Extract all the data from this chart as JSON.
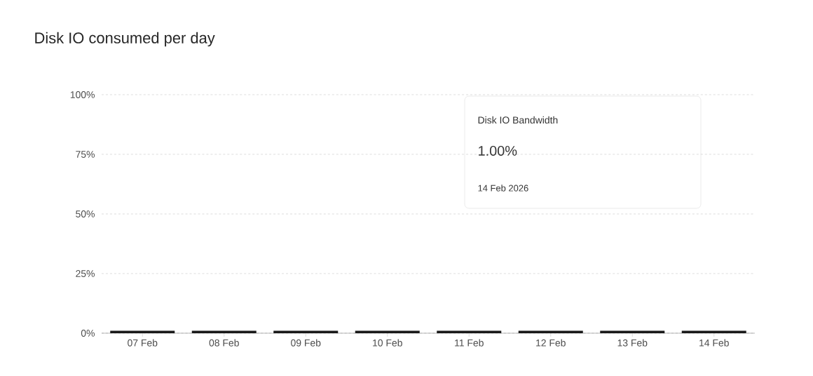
{
  "chart_data": {
    "type": "bar",
    "title": "Disk IO consumed per day",
    "categories": [
      "07 Feb",
      "08 Feb",
      "09 Feb",
      "10 Feb",
      "11 Feb",
      "12 Feb",
      "13 Feb",
      "14 Feb"
    ],
    "values": [
      1,
      1,
      1,
      1,
      1,
      1,
      1,
      1
    ],
    "color": "#1a1a1a",
    "ylim": [
      0,
      100
    ],
    "yticks": [
      {
        "value": 0,
        "label": "0%"
      },
      {
        "value": 25,
        "label": "25%"
      },
      {
        "value": 50,
        "label": "50%"
      },
      {
        "value": 75,
        "label": "75%"
      },
      {
        "value": 100,
        "label": "100%"
      }
    ],
    "grid": "y",
    "annotations": [
      "Disk IO Bandwidth",
      "1.00%",
      "14 Feb 2026"
    ]
  }
}
